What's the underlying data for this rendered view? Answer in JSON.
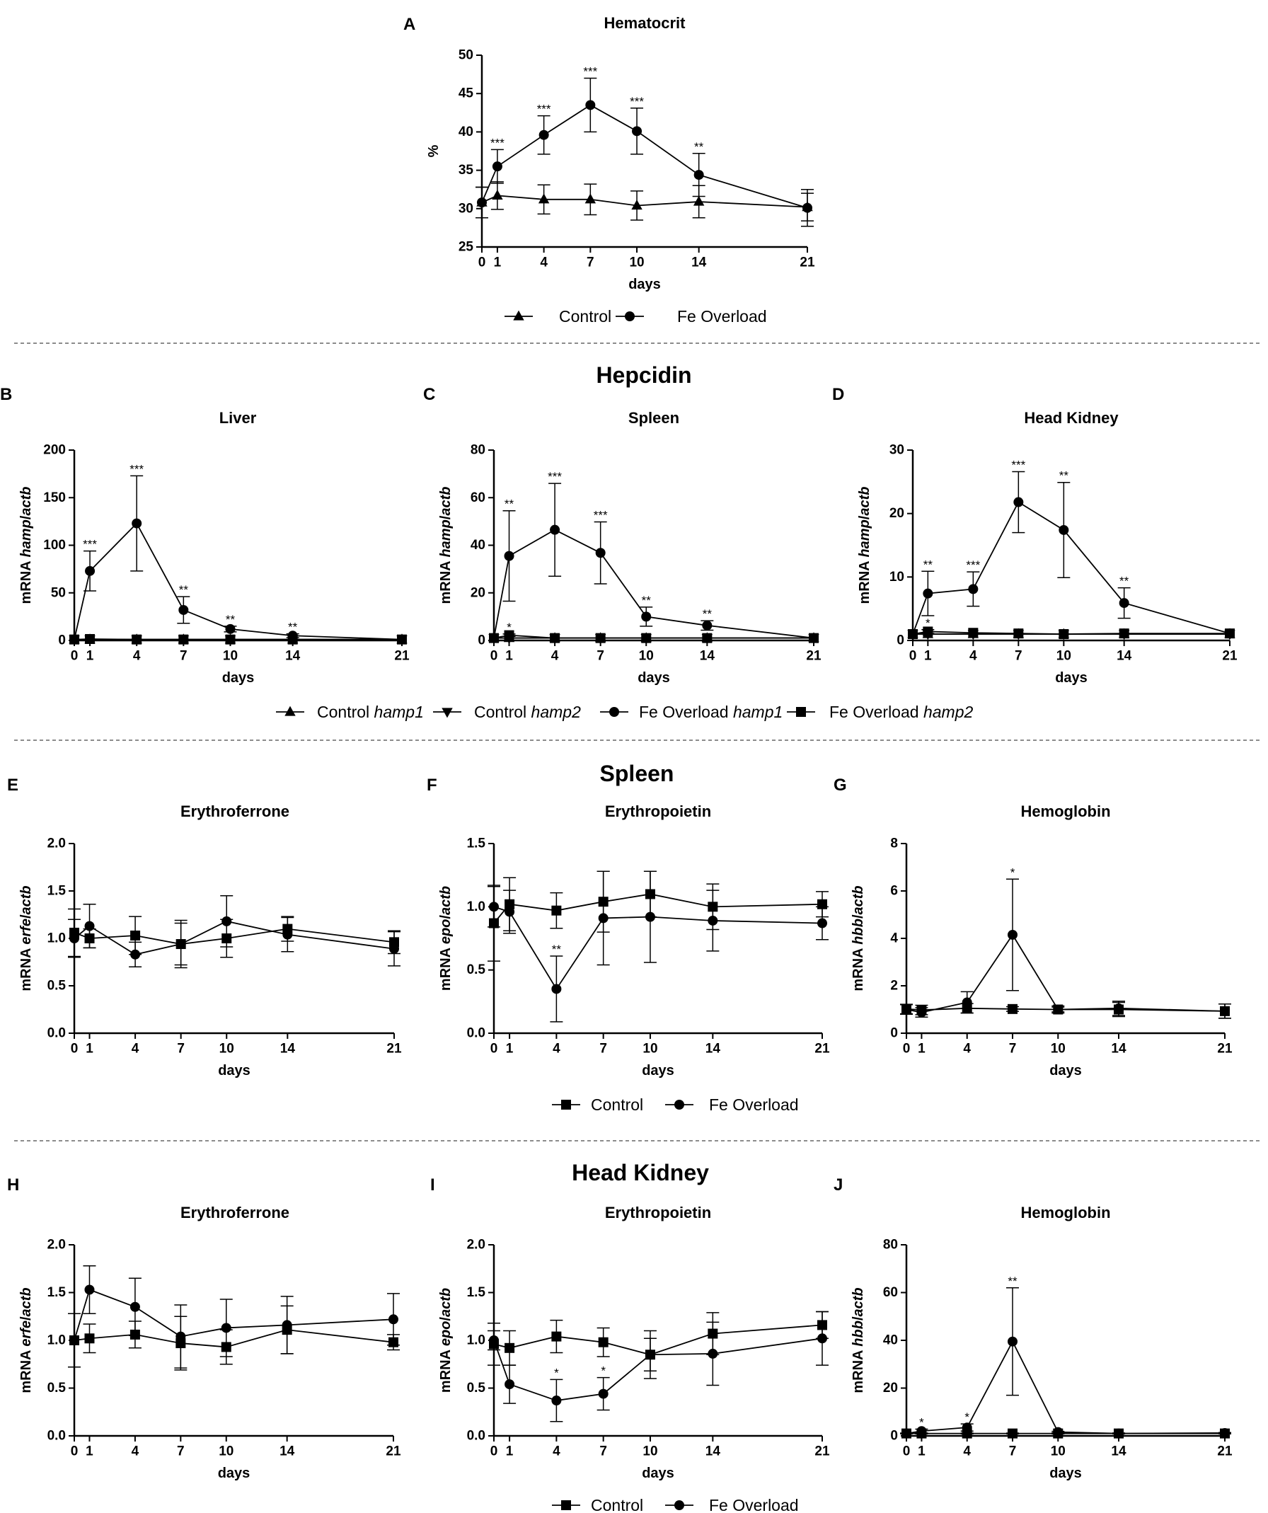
{
  "figure": {
    "headers": {
      "hepcidin": "Hepcidin",
      "spleen": "Spleen",
      "head_kidney": "Head Kidney"
    },
    "legends": {
      "hematocrit": {
        "items": [
          {
            "label": "Control",
            "marker": "triangle"
          },
          {
            "label": "Fe Overload",
            "marker": "circle"
          }
        ]
      },
      "hepcidin": {
        "items": [
          {
            "label": "Control ",
            "gene": "hamp1",
            "marker": "triangle"
          },
          {
            "label": "Control ",
            "gene": "hamp2",
            "marker": "triangle-down"
          },
          {
            "label": "Fe Overload ",
            "gene": "hamp1",
            "marker": "circle"
          },
          {
            "label": "Fe Overload ",
            "gene": "hamp2",
            "marker": "square"
          }
        ]
      },
      "spleen": {
        "items": [
          {
            "label": "Control",
            "marker": "square"
          },
          {
            "label": "Fe Overload",
            "marker": "circle"
          }
        ]
      },
      "head_kidney": {
        "items": [
          {
            "label": "Control",
            "marker": "square"
          },
          {
            "label": "Fe Overload",
            "marker": "circle"
          }
        ]
      }
    }
  },
  "chart_data": [
    {
      "id": "A",
      "type": "line",
      "title": "Hematocrit",
      "xlabel": "days",
      "ylabel": [
        "%"
      ],
      "ylim": [
        25,
        50
      ],
      "yticks": [
        "25",
        "30",
        "35",
        "40",
        "45",
        "50"
      ],
      "x": [
        0,
        1,
        4,
        7,
        10,
        14,
        21
      ],
      "series": [
        {
          "name": "Control",
          "marker": "triangle",
          "values": [
            30.8,
            31.7,
            31.2,
            31.2,
            30.4,
            30.9,
            30.2
          ],
          "errors": [
            2.0,
            1.8,
            1.9,
            2.0,
            1.9,
            2.1,
            1.8
          ],
          "stars": [
            "",
            "",
            "",
            "",
            "",
            "",
            ""
          ]
        },
        {
          "name": "Fe Overload",
          "marker": "circle",
          "values": [
            30.8,
            35.5,
            39.6,
            43.5,
            40.1,
            34.4,
            30.1
          ],
          "errors": [
            2.0,
            2.2,
            2.5,
            3.5,
            3.0,
            2.8,
            2.4
          ],
          "stars": [
            "",
            "***",
            "***",
            "***",
            "***",
            "**",
            ""
          ]
        }
      ]
    },
    {
      "id": "B",
      "type": "line",
      "title": "Liver",
      "xlabel": "days",
      "ylabel": [
        "mRNA ",
        "hamp",
        "/",
        "actb"
      ],
      "ylim": [
        0,
        200
      ],
      "yticks": [
        "0",
        "50",
        "100",
        "150",
        "200"
      ],
      "x": [
        0,
        1,
        4,
        7,
        10,
        14,
        21
      ],
      "series": [
        {
          "name": "Control hamp1",
          "marker": "triangle",
          "values": [
            1,
            1,
            1,
            1,
            1,
            1,
            1
          ],
          "errors": [
            0,
            0,
            0,
            0,
            0,
            0,
            0
          ],
          "stars": [
            "",
            "",
            "",
            "",
            "",
            "",
            ""
          ]
        },
        {
          "name": "Control hamp2",
          "marker": "triangle-down",
          "values": [
            1,
            1,
            1,
            1,
            1,
            1,
            1
          ],
          "errors": [
            0,
            0,
            0,
            0,
            0,
            0,
            0
          ],
          "stars": [
            "",
            "",
            "",
            "",
            "",
            "",
            ""
          ]
        },
        {
          "name": "Fe Overload hamp1",
          "marker": "circle",
          "values": [
            1,
            73,
            123,
            32,
            12,
            5,
            1
          ],
          "errors": [
            0,
            21,
            50,
            14,
            3,
            2,
            0
          ],
          "stars": [
            "",
            "***",
            "***",
            "**",
            "**",
            "**",
            ""
          ]
        },
        {
          "name": "Fe Overload hamp2",
          "marker": "square",
          "values": [
            1,
            1.5,
            1,
            1,
            1,
            1,
            1
          ],
          "errors": [
            0,
            0,
            0,
            0,
            0,
            0,
            0
          ],
          "stars": [
            "",
            "",
            "",
            "",
            "",
            "",
            ""
          ]
        }
      ]
    },
    {
      "id": "C",
      "type": "line",
      "title": "Spleen",
      "xlabel": "days",
      "ylabel": [
        "mRNA ",
        "hamp",
        "/",
        "actb"
      ],
      "ylim": [
        0,
        80
      ],
      "yticks": [
        "0",
        "20",
        "40",
        "60",
        "80"
      ],
      "x": [
        0,
        1,
        4,
        7,
        10,
        14,
        21
      ],
      "series": [
        {
          "name": "Control hamp1",
          "marker": "triangle",
          "values": [
            1,
            1,
            1,
            1,
            1,
            1,
            1
          ],
          "errors": [
            0,
            0,
            0,
            0,
            0,
            0,
            0
          ],
          "stars": [
            "",
            "",
            "",
            "",
            "",
            "",
            ""
          ]
        },
        {
          "name": "Control hamp2",
          "marker": "triangle-down",
          "values": [
            1,
            1,
            1,
            1,
            1,
            1,
            1
          ],
          "errors": [
            0,
            0,
            0,
            0,
            0,
            0,
            0
          ],
          "stars": [
            "",
            "",
            "",
            "",
            "",
            "",
            ""
          ]
        },
        {
          "name": "Fe Overload hamp1",
          "marker": "circle",
          "values": [
            1,
            35.5,
            46.5,
            36.8,
            10,
            6.3,
            1
          ],
          "errors": [
            0,
            19,
            19.5,
            13,
            4,
            2,
            0
          ],
          "stars": [
            "",
            "**",
            "***",
            "***",
            "**",
            "**",
            ""
          ]
        },
        {
          "name": "Fe Overload hamp2",
          "marker": "square",
          "values": [
            1,
            2.2,
            1,
            1,
            1,
            1,
            1
          ],
          "errors": [
            0,
            0.5,
            0,
            0,
            0,
            0,
            0
          ],
          "stars": [
            "",
            "*",
            "",
            "",
            "",
            "",
            ""
          ]
        }
      ]
    },
    {
      "id": "D",
      "type": "line",
      "title": "Head Kidney",
      "xlabel": "days",
      "ylabel": [
        "mRNA ",
        "hamp",
        "/",
        "actb"
      ],
      "ylim": [
        0,
        30
      ],
      "yticks": [
        "0",
        "10",
        "20",
        "30"
      ],
      "x": [
        0,
        1,
        4,
        7,
        10,
        14,
        21
      ],
      "series": [
        {
          "name": "Control hamp1",
          "marker": "triangle",
          "values": [
            1,
            1,
            1,
            1,
            1,
            1,
            1
          ],
          "errors": [
            0,
            0,
            0,
            0,
            0,
            0,
            0
          ],
          "stars": [
            "",
            "",
            "",
            "",
            "",
            "",
            ""
          ]
        },
        {
          "name": "Control hamp2",
          "marker": "triangle-down",
          "values": [
            1,
            1,
            1,
            1,
            1,
            1,
            1
          ],
          "errors": [
            0,
            0,
            0,
            0,
            0,
            0,
            0
          ],
          "stars": [
            "",
            "",
            "",
            "",
            "",
            "",
            ""
          ]
        },
        {
          "name": "Fe Overload hamp1",
          "marker": "circle",
          "values": [
            1,
            7.4,
            8.1,
            21.8,
            17.4,
            5.9,
            1.1
          ],
          "errors": [
            0,
            3.5,
            2.7,
            4.8,
            7.5,
            2.4,
            0
          ],
          "stars": [
            "",
            "**",
            "***",
            "***",
            "**",
            "**",
            ""
          ]
        },
        {
          "name": "Fe Overload hamp2",
          "marker": "square",
          "values": [
            1,
            1.4,
            1.2,
            1.1,
            1.0,
            1.1,
            1.1
          ],
          "errors": [
            0,
            0.3,
            0,
            0,
            0,
            0,
            0
          ],
          "stars": [
            "",
            "*",
            "",
            "",
            "",
            "",
            ""
          ]
        }
      ]
    },
    {
      "id": "E",
      "type": "line",
      "title": "Erythroferrone",
      "xlabel": "days",
      "ylabel": [
        "mRNA ",
        "erfe",
        "/",
        "actb"
      ],
      "ylim": [
        0,
        2
      ],
      "yticks": [
        "0.0",
        "0.5",
        "1.0",
        "1.5",
        "2.0"
      ],
      "x": [
        0,
        1,
        4,
        7,
        10,
        14,
        21
      ],
      "series": [
        {
          "name": "Control",
          "marker": "square",
          "values": [
            1.06,
            1.0,
            1.03,
            0.94,
            1.0,
            1.1,
            0.96
          ],
          "errors": [
            0.25,
            0.1,
            0.2,
            0.25,
            0.2,
            0.13,
            0.12
          ],
          "stars": [
            "",
            "",
            "",
            "",
            "",
            "",
            ""
          ]
        },
        {
          "name": "Fe Overload",
          "marker": "circle",
          "values": [
            1.0,
            1.13,
            0.83,
            0.94,
            1.18,
            1.04,
            0.89
          ],
          "errors": [
            0.2,
            0.23,
            0.13,
            0.22,
            0.27,
            0.18,
            0.18
          ],
          "stars": [
            "",
            "",
            "",
            "",
            "",
            "",
            ""
          ]
        }
      ]
    },
    {
      "id": "F",
      "type": "line",
      "title": "Erythropoietin",
      "xlabel": "days",
      "ylabel": [
        "mRNA ",
        "epo",
        "/",
        "actb"
      ],
      "ylim": [
        0,
        1.5
      ],
      "yticks": [
        "0.0",
        "0.5",
        "1.0",
        "1.5"
      ],
      "x": [
        0,
        1,
        4,
        7,
        10,
        14,
        21
      ],
      "series": [
        {
          "name": "Control",
          "marker": "square",
          "values": [
            0.87,
            1.02,
            0.97,
            1.04,
            1.1,
            1.0,
            1.02
          ],
          "errors": [
            0.3,
            0.21,
            0.14,
            0.24,
            0.18,
            0.18,
            0.1
          ],
          "stars": [
            "",
            "",
            "",
            "",
            "",
            "",
            ""
          ]
        },
        {
          "name": "Fe Overload",
          "marker": "circle",
          "values": [
            1.0,
            0.96,
            0.35,
            0.91,
            0.92,
            0.89,
            0.87
          ],
          "errors": [
            0.16,
            0.17,
            0.26,
            0.37,
            0.36,
            0.24,
            0.13
          ],
          "stars": [
            "",
            "",
            "**",
            "",
            "",
            "",
            ""
          ]
        }
      ]
    },
    {
      "id": "G",
      "type": "line",
      "title": "Hemoglobin",
      "xlabel": "days",
      "ylabel": [
        "mRNA ",
        "hbb",
        "/",
        "actb"
      ],
      "ylim": [
        0,
        8
      ],
      "yticks": [
        "0",
        "2",
        "4",
        "6",
        "8"
      ],
      "x": [
        0,
        1,
        4,
        7,
        10,
        14,
        21
      ],
      "series": [
        {
          "name": "Control",
          "marker": "square",
          "values": [
            1.02,
            0.98,
            1.05,
            1.02,
            1.0,
            1.0,
            0.93
          ],
          "errors": [
            0.2,
            0.2,
            0.2,
            0.1,
            0.15,
            0.3,
            0.3
          ],
          "stars": [
            "",
            "",
            "",
            "",
            "",
            "",
            ""
          ]
        },
        {
          "name": "Fe Overload",
          "marker": "circle",
          "values": [
            1.0,
            0.88,
            1.3,
            4.15,
            1.0,
            1.05,
            0.93
          ],
          "errors": [
            0.2,
            0.2,
            0.45,
            2.35,
            0.1,
            0.3,
            0.3
          ],
          "stars": [
            "",
            "",
            "",
            "*",
            "",
            "",
            ""
          ]
        }
      ]
    },
    {
      "id": "H",
      "type": "line",
      "title": "Erythroferrone",
      "xlabel": "days",
      "ylabel": [
        "mRNA ",
        "erfe",
        "/",
        "actb"
      ],
      "ylim": [
        0,
        2
      ],
      "yticks": [
        "0.0",
        "0.5",
        "1.0",
        "1.5",
        "2.0"
      ],
      "x": [
        0,
        1,
        4,
        7,
        10,
        14,
        21
      ],
      "series": [
        {
          "name": "Control",
          "marker": "square",
          "values": [
            1.0,
            1.02,
            1.06,
            0.97,
            0.93,
            1.11,
            0.98
          ],
          "errors": [
            0.28,
            0.15,
            0.14,
            0.28,
            0.18,
            0.25,
            0.08
          ],
          "stars": [
            "",
            "",
            "",
            "",
            "",
            "",
            ""
          ]
        },
        {
          "name": "Fe Overload",
          "marker": "circle",
          "values": [
            1.0,
            1.53,
            1.35,
            1.04,
            1.13,
            1.16,
            1.22
          ],
          "errors": [
            0.28,
            0.25,
            0.3,
            0.33,
            0.3,
            0.3,
            0.27
          ],
          "stars": [
            "",
            "",
            "",
            "",
            "",
            "",
            ""
          ]
        }
      ]
    },
    {
      "id": "I",
      "type": "line",
      "title": "Erythropoietin",
      "xlabel": "days",
      "ylabel": [
        "mRNA ",
        "epo",
        "/",
        "actb"
      ],
      "ylim": [
        0,
        2
      ],
      "yticks": [
        "0.0",
        "0.5",
        "1.0",
        "1.5",
        "2.0"
      ],
      "x": [
        0,
        1,
        4,
        7,
        10,
        14,
        21
      ],
      "series": [
        {
          "name": "Control",
          "marker": "square",
          "values": [
            0.96,
            0.92,
            1.04,
            0.98,
            0.85,
            1.07,
            1.16
          ],
          "errors": [
            0.22,
            0.18,
            0.17,
            0.15,
            0.25,
            0.22,
            0.14
          ],
          "stars": [
            "",
            "",
            "",
            "",
            "",
            "",
            ""
          ]
        },
        {
          "name": "Fe Overload",
          "marker": "circle",
          "values": [
            1.0,
            0.54,
            0.37,
            0.44,
            0.85,
            0.86,
            1.02
          ],
          "errors": [
            0.1,
            0.2,
            0.22,
            0.17,
            0.17,
            0.33,
            0.28
          ],
          "stars": [
            "",
            "",
            "*",
            "*",
            "",
            "",
            ""
          ]
        }
      ]
    },
    {
      "id": "J",
      "type": "line",
      "title": "Hemoglobin",
      "xlabel": "days",
      "ylabel": [
        "mRNA ",
        "hbb",
        "/",
        "actb"
      ],
      "ylim": [
        0,
        80
      ],
      "yticks": [
        "0",
        "20",
        "40",
        "60",
        "80"
      ],
      "x": [
        0,
        1,
        4,
        7,
        10,
        14,
        21
      ],
      "series": [
        {
          "name": "Control",
          "marker": "square",
          "values": [
            1,
            1,
            1,
            1,
            1,
            1,
            1
          ],
          "errors": [
            0.2,
            0.2,
            0.2,
            0.2,
            0.2,
            0.2,
            0.2
          ],
          "stars": [
            "",
            "",
            "",
            "",
            "",
            "",
            ""
          ]
        },
        {
          "name": "Fe Overload",
          "marker": "circle",
          "values": [
            1.0,
            2.0,
            3.5,
            39.5,
            1.6,
            1.0,
            1.2
          ],
          "errors": [
            0,
            0.8,
            1.5,
            22.5,
            0.3,
            0.2,
            0.2
          ],
          "stars": [
            "",
            "*",
            "*",
            "**",
            "",
            "",
            ""
          ]
        }
      ]
    }
  ]
}
